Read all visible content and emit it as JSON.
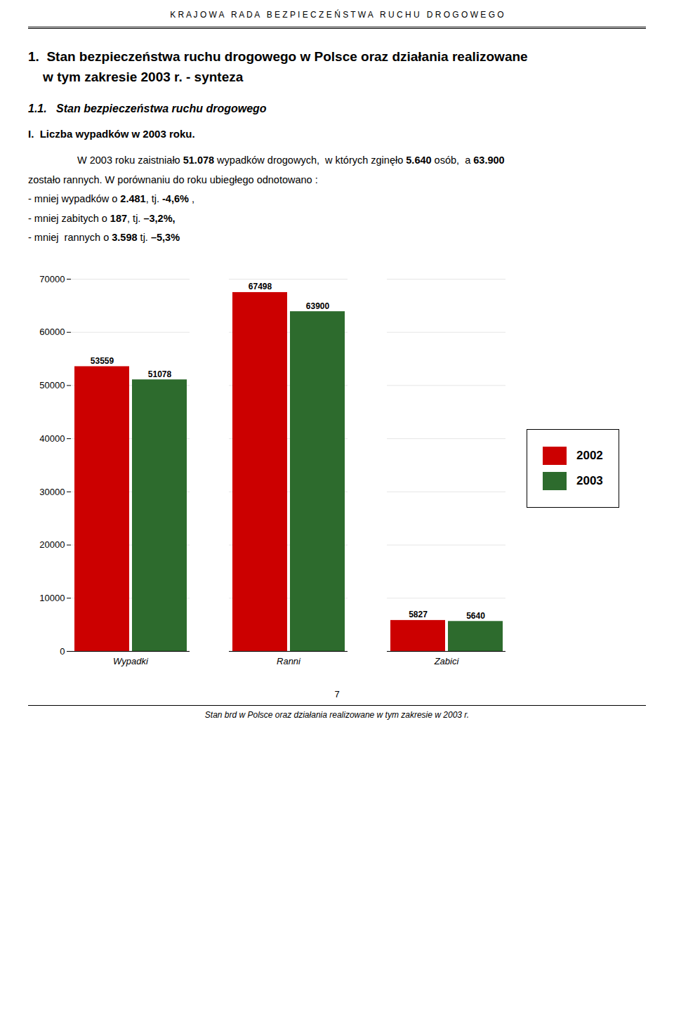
{
  "chart_data": {
    "type": "bar",
    "title": "1.  Stan bezpieczeństwa ruchu drogowego w Polsce oraz działania realizowane\n    w tym zakresie 2003 r. - synteza",
    "subtitle": "1.1.   Stan bezpieczeństwa ruchu drogowego",
    "annotations": [
      [
        "K R A J O W A   R A D A   B E Z P I E C Z E Ń S T W A   R U C H U   D R O G O W E G O"
      ],
      [
        "I.  Liczba wypadków w 2003 roku."
      ],
      [
        "W 2003 roku zaistniało ",
        "51.078",
        " wypadków drogowych,  w których zginęło ",
        "5.640",
        " osób,  a ",
        "63.900"
      ],
      [
        "zostało rannych. W porównaniu do roku ubiegłego odnotowano :"
      ],
      [
        "- mniej wypadków o ",
        "2.481",
        ", tj. ",
        "-4,6%",
        " ,"
      ],
      [
        "- mniej zabitych o ",
        "187",
        ", tj. ",
        "–3,2%,"
      ],
      [
        "- mniej  rannych o ",
        "3.598",
        " tj. ",
        "–5,3%"
      ],
      [
        "7"
      ],
      [
        "Stan brd w Polsce oraz działania realizowane w tym zakresie w 2003 r."
      ]
    ],
    "categories": [
      "Wypadki",
      "Ranni",
      "Zabici"
    ],
    "series": [
      {
        "name": "2002",
        "color": "#cc0000",
        "values": [
          53559,
          67498,
          5827
        ]
      },
      {
        "name": "2003",
        "color": "#2d6b2d",
        "values": [
          51078,
          63900,
          5640
        ]
      }
    ],
    "ylim": [
      0,
      70000
    ],
    "yticks": [
      0,
      10000,
      20000,
      30000,
      40000,
      50000,
      60000,
      70000
    ],
    "grid": true,
    "data_labels": true,
    "legend": "right"
  }
}
